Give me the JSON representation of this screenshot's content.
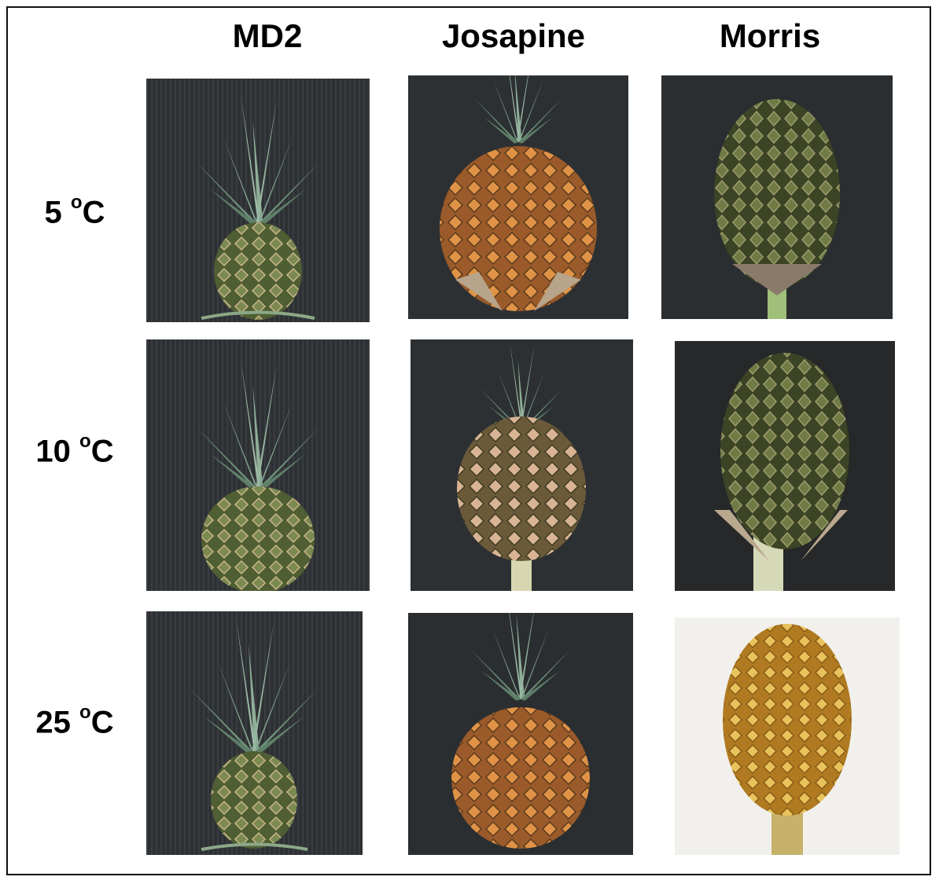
{
  "columns": [
    {
      "label": "MD2"
    },
    {
      "label": "Josapine"
    },
    {
      "label": "Morris"
    }
  ],
  "rows": [
    {
      "value": "5",
      "unit_sup": "o",
      "unit": "C"
    },
    {
      "value": "10",
      "unit_sup": "o",
      "unit": "C"
    },
    {
      "value": "25",
      "unit_sup": "o",
      "unit": "C"
    }
  ],
  "colors": {
    "background_dark": "#2f3235",
    "crown_green": "#7d9a83",
    "fruit_green": "#5f6f3d",
    "fruit_orange": "#d8893a",
    "fruit_yellow": "#e0b14a"
  }
}
